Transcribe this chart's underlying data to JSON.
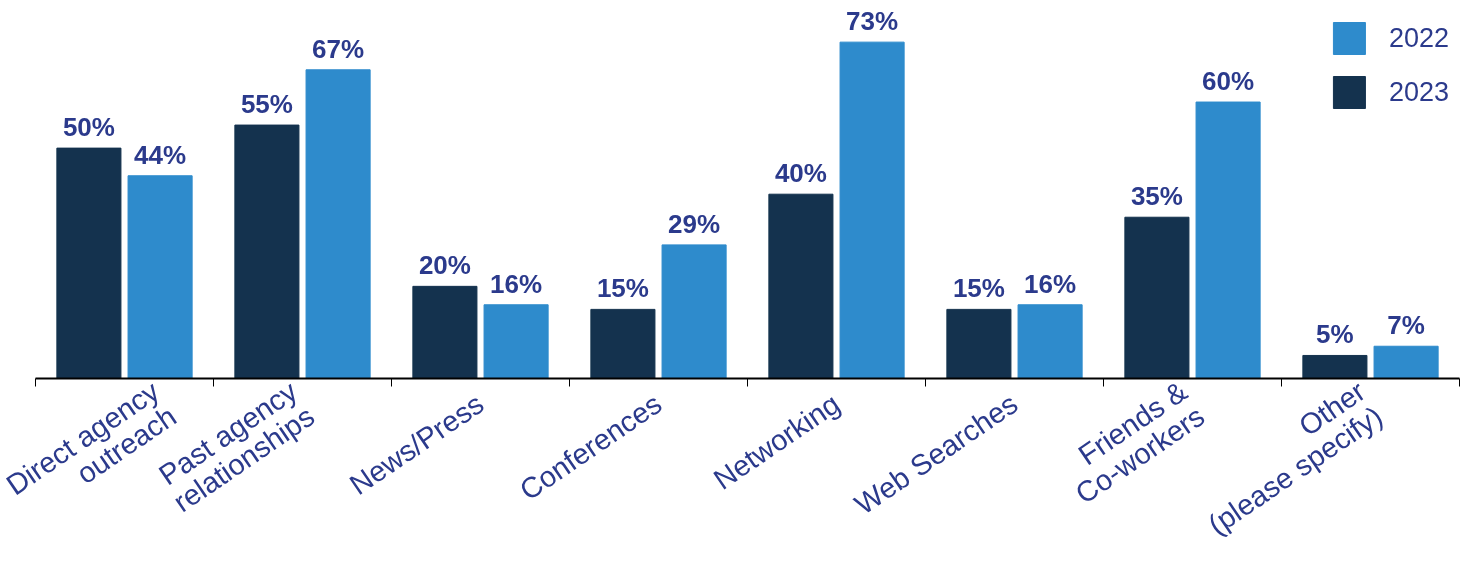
{
  "chart_data": {
    "type": "bar",
    "categories": [
      "Direct agency\noutreach",
      "Past agency\nrelationships",
      "News/Press",
      "Conferences",
      "Networking",
      "Web Searches",
      "Friends &\nCo-workers",
      "Other\n(please specify)"
    ],
    "series": [
      {
        "name": "2023",
        "color": "#14324e",
        "values": [
          50,
          55,
          20,
          15,
          40,
          15,
          35,
          5
        ],
        "value_labels": [
          "50%",
          "55%",
          "20%",
          "15%",
          "40%",
          "15%",
          "35%",
          "5%"
        ]
      },
      {
        "name": "2022",
        "color": "#2e8bcc",
        "values": [
          44,
          67,
          16,
          29,
          73,
          16,
          60,
          7
        ],
        "value_labels": [
          "44%",
          "67%",
          "16%",
          "29%",
          "73%",
          "16%",
          "60%",
          "7%"
        ]
      }
    ],
    "legend": "top right",
    "grid": false
  }
}
